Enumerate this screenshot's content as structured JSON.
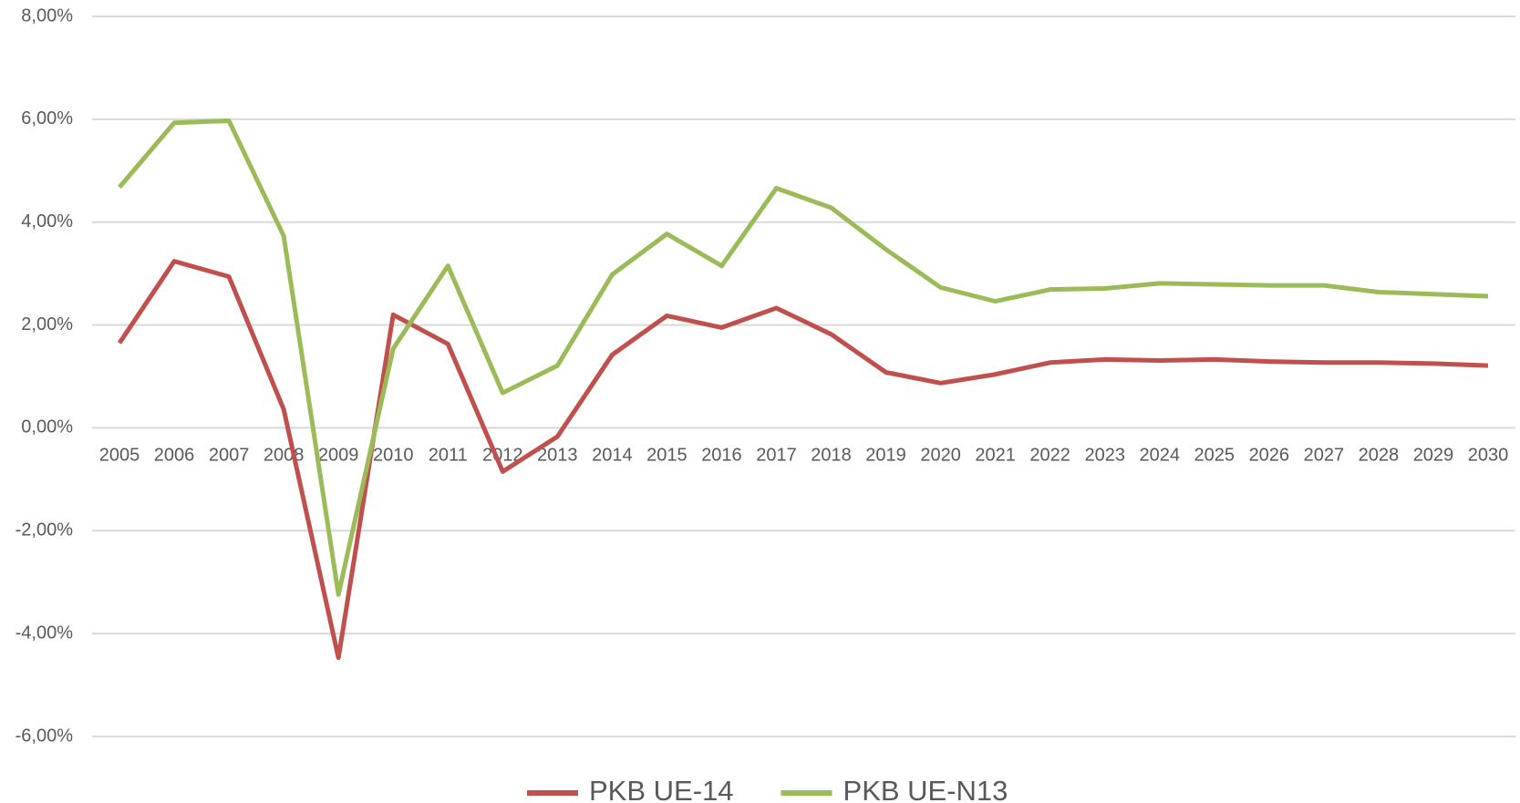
{
  "chart_data": {
    "type": "line",
    "categories": [
      "2005",
      "2006",
      "2007",
      "2008",
      "2009",
      "2010",
      "2011",
      "2012",
      "2013",
      "2014",
      "2015",
      "2016",
      "2017",
      "2018",
      "2019",
      "2020",
      "2021",
      "2022",
      "2023",
      "2024",
      "2025",
      "2026",
      "2027",
      "2028",
      "2029",
      "2030"
    ],
    "series": [
      {
        "name": "PKB UE-14",
        "color": "#c0504d",
        "values": [
          1.65,
          3.24,
          2.94,
          0.36,
          -4.47,
          2.2,
          1.63,
          -0.85,
          -0.17,
          1.42,
          2.18,
          1.95,
          2.33,
          1.82,
          1.08,
          0.87,
          1.04,
          1.27,
          1.33,
          1.31,
          1.33,
          1.29,
          1.27,
          1.27,
          1.25,
          1.21
        ]
      },
      {
        "name": "PKB UE-N13",
        "color": "#9bbb59",
        "values": [
          4.68,
          5.93,
          5.97,
          3.73,
          -3.24,
          1.54,
          3.15,
          0.68,
          1.21,
          2.98,
          3.77,
          3.15,
          4.66,
          4.28,
          3.47,
          2.73,
          2.46,
          2.69,
          2.71,
          2.81,
          2.79,
          2.77,
          2.77,
          2.64,
          2.6,
          2.56
        ]
      }
    ],
    "ylim": [
      -6,
      8
    ],
    "yticks": [
      {
        "value": -6,
        "label": "-6,00%"
      },
      {
        "value": -4,
        "label": "-4,00%"
      },
      {
        "value": -2,
        "label": "-2,00%"
      },
      {
        "value": 0,
        "label": "0,00%"
      },
      {
        "value": 2,
        "label": "2,00%"
      },
      {
        "value": 4,
        "label": "4,00%"
      },
      {
        "value": 6,
        "label": "6,00%"
      },
      {
        "value": 8,
        "label": "8,00%"
      }
    ],
    "grid": true,
    "legend": "bottom"
  }
}
